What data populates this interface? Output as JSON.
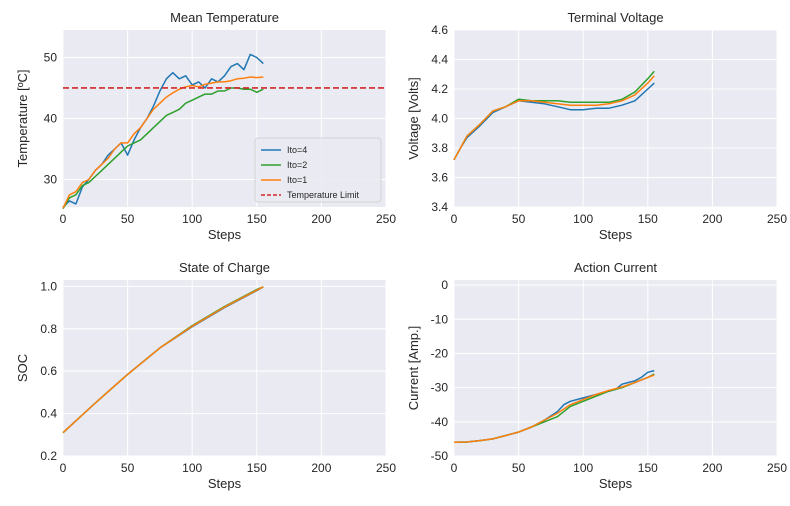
{
  "chart_data": [
    {
      "type": "line",
      "title": "Mean Temperature",
      "xlabel": "Steps",
      "ylabel": "Temperature [ºC]",
      "xlim": [
        0,
        250
      ],
      "ylim": [
        25.5,
        54.5
      ],
      "xticks": [
        0,
        50,
        100,
        150,
        200,
        250
      ],
      "yticks": [
        30,
        40,
        50
      ],
      "grid": true,
      "legend": {
        "placement": "lower-right",
        "entries": [
          "Ito=4",
          "Ito=2",
          "Ito=1",
          "Temperature Limit"
        ]
      },
      "hlines": [
        {
          "name": "Temperature Limit",
          "y": 45,
          "color": "#d62728",
          "style": "dashed"
        }
      ],
      "series": [
        {
          "name": "Ito=4",
          "color": "#1f77b4",
          "x": [
            0,
            5,
            10,
            15,
            20,
            25,
            30,
            35,
            40,
            45,
            50,
            55,
            60,
            65,
            70,
            75,
            80,
            85,
            90,
            95,
            100,
            105,
            110,
            115,
            120,
            125,
            130,
            135,
            140,
            145,
            150,
            155
          ],
          "y": [
            25.5,
            26.5,
            26,
            28.8,
            30,
            31.5,
            32.5,
            34,
            35,
            36,
            34,
            36.5,
            38.5,
            40,
            42,
            44.5,
            46.5,
            47.5,
            46.5,
            47,
            45.5,
            46,
            45,
            46.5,
            46,
            47,
            48.5,
            49,
            48,
            50.5,
            50,
            49
          ]
        },
        {
          "name": "Ito=2",
          "color": "#2ca02c",
          "x": [
            0,
            5,
            10,
            15,
            20,
            25,
            30,
            35,
            40,
            45,
            50,
            55,
            60,
            65,
            70,
            75,
            80,
            85,
            90,
            95,
            100,
            105,
            110,
            115,
            120,
            125,
            130,
            135,
            140,
            145,
            150,
            155
          ],
          "y": [
            25.2,
            27,
            27.5,
            29,
            29.5,
            30.5,
            31.5,
            32.5,
            33.5,
            34.5,
            35.5,
            36,
            36.5,
            37.5,
            38.5,
            39.5,
            40.5,
            41,
            41.5,
            42.5,
            43,
            43.5,
            44,
            44,
            44.5,
            44.5,
            45,
            45,
            44.8,
            44.8,
            44.3,
            44.8
          ]
        },
        {
          "name": "Ito=1",
          "color": "#ff7f0e",
          "x": [
            0,
            5,
            10,
            15,
            20,
            25,
            30,
            35,
            40,
            45,
            50,
            55,
            60,
            65,
            70,
            75,
            80,
            85,
            90,
            95,
            100,
            105,
            110,
            115,
            120,
            125,
            130,
            135,
            140,
            145,
            150,
            155
          ],
          "y": [
            25.3,
            27.5,
            28,
            29.5,
            30,
            31.5,
            32.5,
            33.5,
            35,
            36,
            36,
            37.5,
            38.5,
            40,
            41.5,
            42.5,
            43.5,
            44.2,
            44.8,
            45.2,
            45.4,
            45.2,
            45.6,
            45.8,
            46,
            46,
            46.2,
            46.5,
            46.6,
            46.8,
            46.7,
            46.8
          ]
        }
      ]
    },
    {
      "type": "line",
      "title": "Terminal Voltage",
      "xlabel": "Steps",
      "ylabel": "Voltage [Volts]",
      "xlim": [
        0,
        250
      ],
      "ylim": [
        3.4,
        4.6
      ],
      "xticks": [
        0,
        50,
        100,
        150,
        200,
        250
      ],
      "yticks": [
        3.4,
        3.6,
        3.8,
        4.0,
        4.2,
        4.4,
        4.6
      ],
      "grid": true,
      "series": [
        {
          "name": "Ito=4",
          "color": "#1f77b4",
          "x": [
            0,
            5,
            10,
            20,
            30,
            40,
            50,
            60,
            70,
            80,
            90,
            100,
            110,
            120,
            130,
            140,
            150,
            155
          ],
          "y": [
            3.72,
            3.8,
            3.87,
            3.95,
            4.04,
            4.08,
            4.12,
            4.11,
            4.1,
            4.08,
            4.06,
            4.06,
            4.07,
            4.07,
            4.09,
            4.12,
            4.2,
            4.24
          ]
        },
        {
          "name": "Ito=2",
          "color": "#2ca02c",
          "x": [
            0,
            5,
            10,
            20,
            30,
            40,
            50,
            60,
            70,
            80,
            90,
            100,
            110,
            120,
            130,
            140,
            150,
            155
          ],
          "y": [
            3.72,
            3.8,
            3.88,
            3.96,
            4.05,
            4.08,
            4.13,
            4.12,
            4.12,
            4.12,
            4.11,
            4.11,
            4.11,
            4.11,
            4.13,
            4.18,
            4.27,
            4.32
          ]
        },
        {
          "name": "Ito=1",
          "color": "#ff7f0e",
          "x": [
            0,
            5,
            10,
            20,
            30,
            40,
            50,
            60,
            70,
            80,
            90,
            100,
            110,
            120,
            130,
            140,
            150,
            155
          ],
          "y": [
            3.72,
            3.8,
            3.88,
            3.96,
            4.05,
            4.08,
            4.12,
            4.12,
            4.11,
            4.1,
            4.09,
            4.09,
            4.09,
            4.1,
            4.12,
            4.16,
            4.24,
            4.29
          ]
        }
      ]
    },
    {
      "type": "line",
      "title": "State of Charge",
      "xlabel": "Steps",
      "ylabel": "SOC",
      "xlim": [
        0,
        250
      ],
      "ylim": [
        0.2,
        1.03
      ],
      "xticks": [
        0,
        50,
        100,
        150,
        200,
        250
      ],
      "yticks": [
        0.2,
        0.4,
        0.6,
        0.8,
        1.0
      ],
      "grid": true,
      "series": [
        {
          "name": "Ito=4",
          "color": "#1f77b4",
          "x": [
            0,
            25,
            50,
            75,
            100,
            125,
            150,
            155
          ],
          "y": [
            0.31,
            0.45,
            0.585,
            0.71,
            0.81,
            0.9,
            0.98,
            0.998
          ]
        },
        {
          "name": "Ito=2",
          "color": "#2ca02c",
          "x": [
            0,
            25,
            50,
            75,
            100,
            125,
            150,
            155
          ],
          "y": [
            0.31,
            0.45,
            0.585,
            0.71,
            0.815,
            0.905,
            0.985,
            0.998
          ]
        },
        {
          "name": "Ito=1",
          "color": "#ff7f0e",
          "x": [
            0,
            25,
            50,
            75,
            100,
            125,
            150,
            155
          ],
          "y": [
            0.31,
            0.45,
            0.585,
            0.71,
            0.812,
            0.902,
            0.982,
            0.998
          ]
        }
      ]
    },
    {
      "type": "line",
      "title": "Action Current",
      "xlabel": "Steps",
      "ylabel": "Current [Amp.]",
      "xlim": [
        0,
        250
      ],
      "ylim": [
        -50,
        1.5
      ],
      "xticks": [
        0,
        50,
        100,
        150,
        200,
        250
      ],
      "yticks": [
        -50,
        -40,
        -30,
        -20,
        -10,
        0
      ],
      "grid": true,
      "series": [
        {
          "name": "Ito=4",
          "color": "#1f77b4",
          "x": [
            0,
            10,
            20,
            30,
            40,
            50,
            60,
            70,
            80,
            85,
            90,
            95,
            100,
            110,
            120,
            125,
            130,
            135,
            140,
            145,
            150,
            155
          ],
          "y": [
            -46,
            -45.9,
            -45.5,
            -45,
            -44,
            -43,
            -41.5,
            -39.5,
            -37,
            -35,
            -34,
            -33.5,
            -33,
            -32,
            -31,
            -30.5,
            -29,
            -28.5,
            -28,
            -27,
            -25.5,
            -25
          ]
        },
        {
          "name": "Ito=2",
          "color": "#2ca02c",
          "x": [
            0,
            10,
            20,
            30,
            40,
            50,
            60,
            70,
            80,
            90,
            100,
            110,
            120,
            130,
            140,
            150,
            155
          ],
          "y": [
            -46,
            -45.9,
            -45.5,
            -45,
            -44,
            -43,
            -41.5,
            -40,
            -38.5,
            -35.5,
            -34,
            -32.5,
            -31,
            -30,
            -28.5,
            -27,
            -26
          ]
        },
        {
          "name": "Ito=1",
          "color": "#ff7f0e",
          "x": [
            0,
            10,
            20,
            30,
            40,
            50,
            60,
            70,
            80,
            90,
            100,
            110,
            120,
            130,
            140,
            150,
            155
          ],
          "y": [
            -46,
            -45.9,
            -45.5,
            -45,
            -44,
            -43,
            -41.5,
            -39.5,
            -37.5,
            -35,
            -33.5,
            -32,
            -30.8,
            -29.8,
            -28.5,
            -27,
            -26.3
          ]
        }
      ]
    }
  ]
}
